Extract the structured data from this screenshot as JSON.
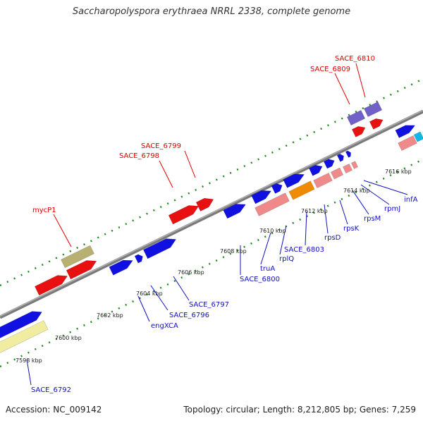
{
  "title": "Saccharopolyspora erythraea NRRL 2338, complete genome",
  "accession": "Accession: NC_009142",
  "summary": "Topology: circular; Length: 8,212,805 bp; Genes: 7,259",
  "colors": {
    "backbone": "#808080",
    "forward_gene": "#1010e0",
    "reverse_gene": "#e81010",
    "light_red": "#f08a8a",
    "orange": "#f08a00",
    "khaki": "#b8b070",
    "lavender": "#7060c8",
    "pale_yellow": "#f0eca0",
    "cyan": "#10b8e8",
    "ticks": "#228822"
  },
  "kbp_ticks": [
    "7598 kbp",
    "7600 kbp",
    "7602 kbp",
    "7604 kbp",
    "7606 kbp",
    "7608 kbp",
    "7610 kbp",
    "7612 kbp",
    "7614 kbp",
    "7616 kbp"
  ],
  "labels_top": [
    {
      "id": "lbl-mycp1",
      "text": "mycP1"
    },
    {
      "id": "lbl-sace6798",
      "text": "SACE_6798"
    },
    {
      "id": "lbl-sace6799",
      "text": "SACE_6799"
    },
    {
      "id": "lbl-sace6809",
      "text": "SACE_6809"
    },
    {
      "id": "lbl-sace6810",
      "text": "SACE_6810"
    }
  ],
  "labels_bottom": [
    {
      "id": "lbl-sace6792",
      "text": "SACE_6792"
    },
    {
      "id": "lbl-engxca",
      "text": "engXCA"
    },
    {
      "id": "lbl-sace6796",
      "text": "SACE_6796"
    },
    {
      "id": "lbl-sace6797",
      "text": "SACE_6797"
    },
    {
      "id": "lbl-sace6800",
      "text": "SACE_6800"
    },
    {
      "id": "lbl-trua",
      "text": "truA"
    },
    {
      "id": "lbl-rplq",
      "text": "rplQ"
    },
    {
      "id": "lbl-sace6803",
      "text": "SACE_6803"
    },
    {
      "id": "lbl-rpsd",
      "text": "rpsD"
    },
    {
      "id": "lbl-rpsk",
      "text": "rpsK"
    },
    {
      "id": "lbl-rpsm",
      "text": "rpsM"
    },
    {
      "id": "lbl-rpmj",
      "text": "rpmJ"
    },
    {
      "id": "lbl-infa",
      "text": "infA"
    }
  ]
}
